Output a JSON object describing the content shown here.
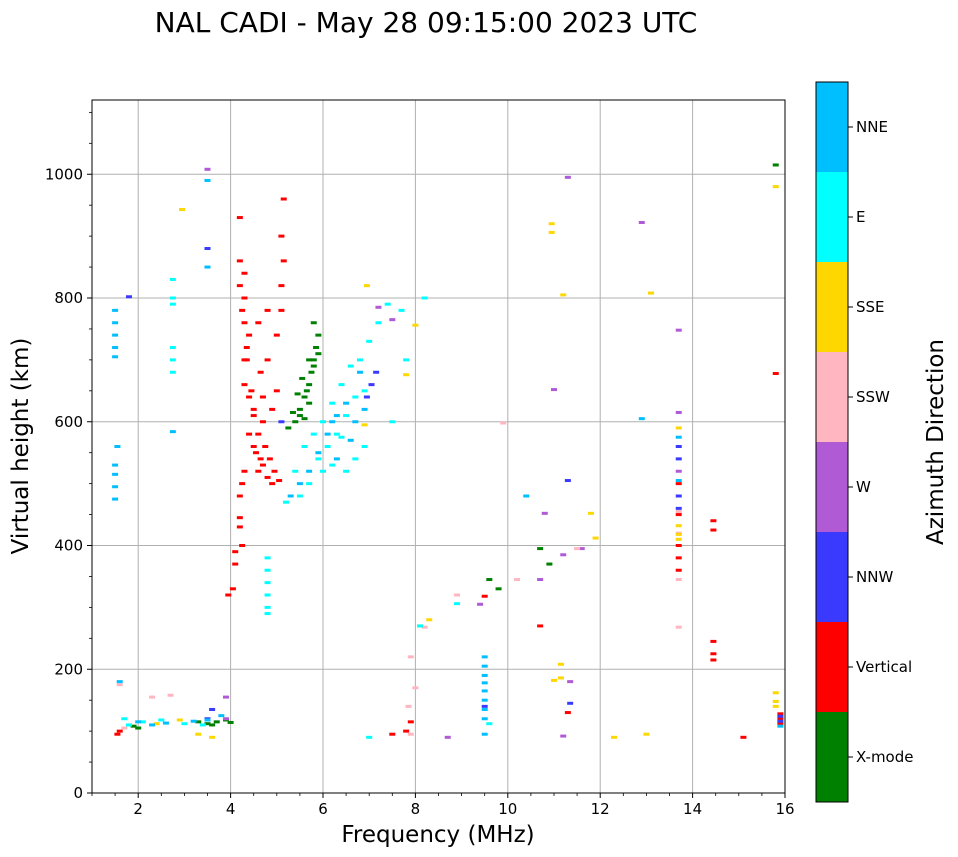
{
  "chart_data": {
    "type": "scatter",
    "title": "NAL CADI - May 28 09:15:00 2023 UTC",
    "xlabel": "Frequency (MHz)",
    "ylabel": "Virtual height (km)",
    "xlim": [
      1.0,
      16.0
    ],
    "ylim": [
      0,
      1120
    ],
    "xticks": [
      2,
      4,
      6,
      8,
      10,
      12,
      14,
      16
    ],
    "yticks": [
      0,
      200,
      400,
      600,
      800,
      1000
    ],
    "grid": true,
    "colorbar": {
      "label": "Azimuth Direction",
      "categories": [
        {
          "name": "X-mode",
          "color": "#008000"
        },
        {
          "name": "Vertical",
          "color": "#ff0000"
        },
        {
          "name": "NNW",
          "color": "#3a3aff"
        },
        {
          "name": "W",
          "color": "#b05ad6"
        },
        {
          "name": "SSW",
          "color": "#ffb6c1"
        },
        {
          "name": "SSE",
          "color": "#ffd700"
        },
        {
          "name": "E",
          "color": "#00ffff"
        },
        {
          "name": "NNE",
          "color": "#00bfff"
        }
      ]
    },
    "series": [
      {
        "name": "X-mode",
        "color": "#008000",
        "points": [
          [
            5.25,
            590
          ],
          [
            5.4,
            600
          ],
          [
            5.5,
            620
          ],
          [
            5.6,
            640
          ],
          [
            5.7,
            660
          ],
          [
            5.75,
            680
          ],
          [
            5.8,
            700
          ],
          [
            5.85,
            720
          ],
          [
            5.9,
            740
          ],
          [
            5.8,
            760
          ],
          [
            5.5,
            610
          ],
          [
            5.6,
            605
          ],
          [
            5.7,
            630
          ],
          [
            5.65,
            650
          ],
          [
            5.55,
            670
          ],
          [
            5.45,
            645
          ],
          [
            5.35,
            615
          ],
          [
            5.8,
            690
          ],
          [
            5.9,
            710
          ],
          [
            5.7,
            700
          ],
          [
            3.3,
            115
          ],
          [
            3.5,
            112
          ],
          [
            3.7,
            115
          ],
          [
            3.9,
            118
          ],
          [
            4.0,
            114
          ],
          [
            3.6,
            110
          ],
          [
            2.0,
            105
          ],
          [
            1.9,
            108
          ],
          [
            15.8,
            1015
          ],
          [
            10.7,
            395
          ],
          [
            10.9,
            370
          ],
          [
            9.6,
            345
          ],
          [
            9.8,
            330
          ]
        ]
      },
      {
        "name": "Vertical",
        "color": "#ff0000",
        "points": [
          [
            4.6,
            520
          ],
          [
            4.7,
            530
          ],
          [
            4.8,
            510
          ],
          [
            4.9,
            500
          ],
          [
            4.65,
            540
          ],
          [
            4.75,
            560
          ],
          [
            4.55,
            550
          ],
          [
            4.85,
            540
          ],
          [
            4.95,
            520
          ],
          [
            5.05,
            505
          ],
          [
            4.6,
            580
          ],
          [
            4.7,
            600
          ],
          [
            4.5,
            620
          ],
          [
            4.4,
            640
          ],
          [
            4.3,
            660
          ],
          [
            4.3,
            700
          ],
          [
            4.35,
            720
          ],
          [
            4.4,
            740
          ],
          [
            4.3,
            760
          ],
          [
            4.25,
            780
          ],
          [
            4.3,
            800
          ],
          [
            4.2,
            820
          ],
          [
            4.2,
            860
          ],
          [
            4.3,
            840
          ],
          [
            4.5,
            610
          ],
          [
            4.4,
            580
          ],
          [
            4.5,
            560
          ],
          [
            4.3,
            520
          ],
          [
            4.25,
            500
          ],
          [
            4.2,
            480
          ],
          [
            4.8,
            780
          ],
          [
            4.6,
            760
          ],
          [
            4.8,
            700
          ],
          [
            5.0,
            740
          ],
          [
            5.1,
            780
          ],
          [
            5.1,
            820
          ],
          [
            5.15,
            860
          ],
          [
            5.1,
            900
          ],
          [
            5.15,
            960
          ],
          [
            4.2,
            930
          ],
          [
            4.35,
            700
          ],
          [
            4.45,
            650
          ],
          [
            4.7,
            640
          ],
          [
            4.9,
            620
          ],
          [
            5.0,
            650
          ],
          [
            4.65,
            680
          ],
          [
            4.1,
            390
          ],
          [
            4.1,
            370
          ],
          [
            4.05,
            330
          ],
          [
            3.95,
            320
          ],
          [
            4.2,
            445
          ],
          [
            4.2,
            430
          ],
          [
            4.25,
            400
          ],
          [
            14.45,
            440
          ],
          [
            14.45,
            425
          ],
          [
            14.45,
            245
          ],
          [
            14.45,
            225
          ],
          [
            14.45,
            215
          ],
          [
            13.7,
            400
          ],
          [
            13.7,
            360
          ],
          [
            13.7,
            380
          ],
          [
            13.7,
            450
          ],
          [
            13.7,
            500
          ],
          [
            15.8,
            678
          ],
          [
            15.1,
            90
          ],
          [
            15.9,
            112
          ],
          [
            15.9,
            120
          ],
          [
            15.9,
            128
          ],
          [
            1.55,
            95
          ],
          [
            1.6,
            100
          ],
          [
            9.5,
            318
          ],
          [
            10.7,
            270
          ],
          [
            11.3,
            130
          ],
          [
            7.5,
            95
          ],
          [
            7.8,
            100
          ],
          [
            7.9,
            115
          ]
        ]
      },
      {
        "name": "NNW",
        "color": "#3a3aff",
        "points": [
          [
            3.5,
            880
          ],
          [
            5.1,
            600
          ],
          [
            6.95,
            640
          ],
          [
            7.05,
            660
          ],
          [
            7.15,
            680
          ],
          [
            9.5,
            140
          ],
          [
            11.3,
            505
          ],
          [
            11.35,
            145
          ],
          [
            13.7,
            560
          ],
          [
            13.7,
            480
          ],
          [
            13.7,
            540
          ],
          [
            13.7,
            460
          ],
          [
            3.5,
            120
          ],
          [
            3.6,
            135
          ],
          [
            15.9,
            116
          ],
          [
            15.9,
            124
          ],
          [
            1.8,
            802
          ]
        ]
      },
      {
        "name": "W",
        "color": "#b05ad6",
        "points": [
          [
            3.5,
            1008
          ],
          [
            12.9,
            922
          ],
          [
            13.7,
            748
          ],
          [
            13.7,
            615
          ],
          [
            13.7,
            520
          ],
          [
            11.2,
            385
          ],
          [
            11.35,
            180
          ],
          [
            11.2,
            92
          ],
          [
            11.0,
            652
          ],
          [
            10.8,
            452
          ],
          [
            9.4,
            305
          ],
          [
            8.7,
            90
          ],
          [
            3.9,
            155
          ],
          [
            3.9,
            120
          ],
          [
            7.5,
            765
          ],
          [
            7.2,
            785
          ],
          [
            11.3,
            995
          ],
          [
            10.7,
            345
          ],
          [
            11.6,
            395
          ]
        ]
      },
      {
        "name": "SSW",
        "color": "#ffb6c1",
        "points": [
          [
            13.7,
            345
          ],
          [
            13.7,
            268
          ],
          [
            13.7,
            420
          ],
          [
            13.7,
            455
          ],
          [
            8.0,
            170
          ],
          [
            7.9,
            220
          ],
          [
            7.85,
            140
          ],
          [
            7.9,
            95
          ],
          [
            8.2,
            268
          ],
          [
            8.9,
            320
          ],
          [
            9.9,
            598
          ],
          [
            10.2,
            345
          ],
          [
            11.5,
            395
          ],
          [
            2.7,
            158
          ],
          [
            2.3,
            155
          ],
          [
            1.6,
            175
          ],
          [
            1.7,
            105
          ]
        ]
      },
      {
        "name": "SSE",
        "color": "#ffd700",
        "points": [
          [
            2.95,
            943
          ],
          [
            6.95,
            820
          ],
          [
            8.0,
            756
          ],
          [
            7.8,
            676
          ],
          [
            6.9,
            595
          ],
          [
            13.7,
            590
          ],
          [
            13.7,
            432
          ],
          [
            13.7,
            418
          ],
          [
            13.7,
            410
          ],
          [
            13.1,
            808
          ],
          [
            11.2,
            805
          ],
          [
            10.95,
            920
          ],
          [
            10.95,
            906
          ],
          [
            11.15,
            208
          ],
          [
            11.0,
            182
          ],
          [
            11.15,
            186
          ],
          [
            11.8,
            452
          ],
          [
            11.9,
            412
          ],
          [
            12.3,
            90
          ],
          [
            13.0,
            95
          ],
          [
            15.8,
            980
          ],
          [
            15.8,
            162
          ],
          [
            15.8,
            148
          ],
          [
            15.8,
            140
          ],
          [
            3.3,
            95
          ],
          [
            3.6,
            90
          ],
          [
            2.4,
            112
          ],
          [
            2.9,
            118
          ],
          [
            8.1,
            270
          ],
          [
            8.3,
            280
          ]
        ]
      },
      {
        "name": "E",
        "color": "#00ffff",
        "points": [
          [
            2.75,
            830
          ],
          [
            2.75,
            800
          ],
          [
            2.75,
            790
          ],
          [
            2.75,
            720
          ],
          [
            2.75,
            700
          ],
          [
            2.75,
            680
          ],
          [
            4.8,
            380
          ],
          [
            4.8,
            360
          ],
          [
            4.8,
            340
          ],
          [
            4.8,
            320
          ],
          [
            4.8,
            300
          ],
          [
            4.8,
            290
          ],
          [
            5.2,
            470
          ],
          [
            5.4,
            520
          ],
          [
            5.6,
            560
          ],
          [
            5.8,
            580
          ],
          [
            6.0,
            600
          ],
          [
            6.2,
            630
          ],
          [
            6.4,
            660
          ],
          [
            6.6,
            690
          ],
          [
            6.8,
            700
          ],
          [
            7.0,
            730
          ],
          [
            7.2,
            760
          ],
          [
            7.4,
            790
          ],
          [
            5.5,
            480
          ],
          [
            5.7,
            500
          ],
          [
            6.1,
            560
          ],
          [
            6.3,
            580
          ],
          [
            6.5,
            610
          ],
          [
            6.7,
            640
          ],
          [
            6.9,
            650
          ],
          [
            5.9,
            540
          ],
          [
            6.2,
            530
          ],
          [
            6.5,
            520
          ],
          [
            6.7,
            540
          ],
          [
            6.9,
            560
          ],
          [
            6.4,
            575
          ],
          [
            6.0,
            520
          ],
          [
            8.2,
            800
          ],
          [
            7.7,
            780
          ],
          [
            7.8,
            700
          ],
          [
            7.5,
            600
          ],
          [
            7.0,
            90
          ],
          [
            9.6,
            112
          ],
          [
            8.9,
            306
          ],
          [
            8.1,
            270
          ],
          [
            1.8,
            110
          ],
          [
            2.1,
            115
          ],
          [
            2.5,
            118
          ],
          [
            3.0,
            112
          ],
          [
            3.4,
            110
          ],
          [
            1.7,
            120
          ]
        ]
      },
      {
        "name": "NNE",
        "color": "#00bfff",
        "points": [
          [
            1.5,
            780
          ],
          [
            1.5,
            760
          ],
          [
            1.5,
            740
          ],
          [
            1.5,
            720
          ],
          [
            1.5,
            705
          ],
          [
            1.55,
            560
          ],
          [
            1.5,
            530
          ],
          [
            1.5,
            515
          ],
          [
            1.5,
            495
          ],
          [
            1.5,
            475
          ],
          [
            2.75,
            584
          ],
          [
            3.5,
            990
          ],
          [
            3.5,
            850
          ],
          [
            5.3,
            480
          ],
          [
            5.5,
            500
          ],
          [
            5.7,
            520
          ],
          [
            5.9,
            550
          ],
          [
            6.1,
            580
          ],
          [
            6.3,
            610
          ],
          [
            6.5,
            630
          ],
          [
            6.7,
            600
          ],
          [
            6.9,
            620
          ],
          [
            6.3,
            540
          ],
          [
            6.6,
            570
          ],
          [
            6.2,
            600
          ],
          [
            6.8,
            680
          ],
          [
            12.9,
            605
          ],
          [
            13.7,
            505
          ],
          [
            13.7,
            575
          ],
          [
            9.5,
            220
          ],
          [
            9.5,
            205
          ],
          [
            9.5,
            190
          ],
          [
            9.5,
            178
          ],
          [
            9.5,
            165
          ],
          [
            9.5,
            150
          ],
          [
            9.5,
            135
          ],
          [
            9.5,
            120
          ],
          [
            9.5,
            95
          ],
          [
            10.4,
            480
          ],
          [
            2.0,
            115
          ],
          [
            2.3,
            110
          ],
          [
            2.6,
            113
          ],
          [
            3.2,
            116
          ],
          [
            3.5,
            118
          ],
          [
            3.8,
            125
          ],
          [
            1.6,
            180
          ],
          [
            15.9,
            108
          ]
        ]
      }
    ]
  }
}
